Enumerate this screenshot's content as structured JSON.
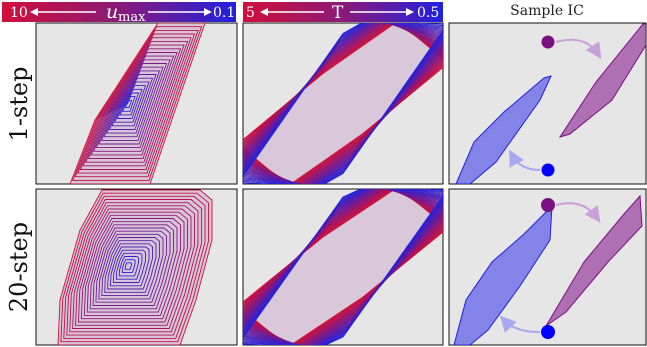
{
  "header": {
    "col1": {
      "left": "10",
      "symbol": "u",
      "subscript": "max",
      "right": "0.1"
    },
    "col2": {
      "left": "5",
      "symbol": "T",
      "right": "0.5"
    },
    "col3": {
      "title": "Sample IC"
    }
  },
  "rows": [
    {
      "label": "1-step"
    },
    {
      "label": "20-step"
    }
  ],
  "colors": {
    "red": "#d0103a",
    "blue": "#2222dd",
    "purple": "#7a1a80",
    "panel_bg": "#e6e6e6",
    "dot_purple": "#7a1080",
    "dot_blue": "#0000ff",
    "region_purple": "#a35aa8",
    "region_blue": "#5a5ae8"
  }
}
